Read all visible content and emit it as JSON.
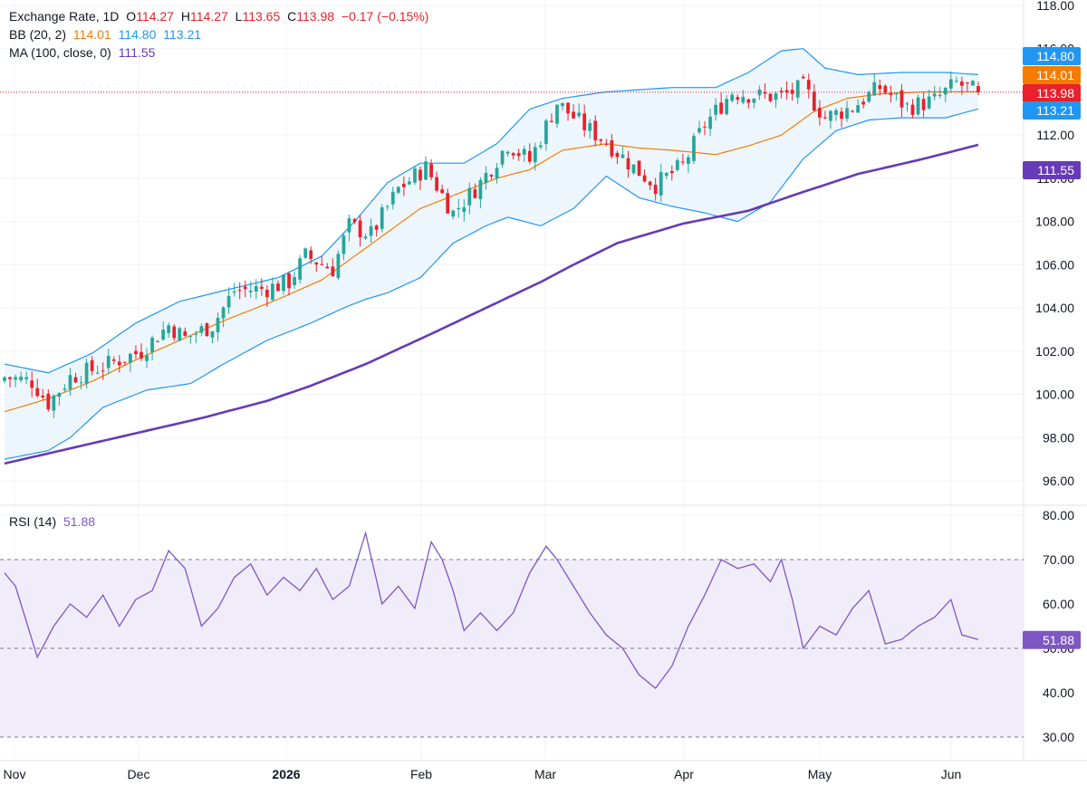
{
  "legend": {
    "price": {
      "name": "Exchange Rate, 1D",
      "o_label": "O",
      "o": "114.27",
      "h_label": "H",
      "h": "114.27",
      "l_label": "L",
      "l": "113.65",
      "c_label": "C",
      "c": "113.98",
      "change": "−0.17 (−0.15%)"
    },
    "bb": {
      "name": "BB (20, 2)",
      "basis": "114.01",
      "upper": "114.80",
      "lower": "113.21"
    },
    "ma": {
      "name": "MA (100, close, 0)",
      "value": "111.55"
    },
    "rsi": {
      "name": "RSI (14)",
      "value": "51.88"
    }
  },
  "colors": {
    "up": "#26a69a",
    "down": "#e8212b",
    "bb_basis": "#f57c00",
    "bb_band": "#2196f3",
    "bb_fill": "#eef6fd",
    "ma": "#673ab7",
    "rsi": "#7e57c2",
    "rsi_zone": "#f1ecfa",
    "grid": "#f0f3fa",
    "axis_text": "#131722"
  },
  "chart_data": [
    {
      "type": "candlestick",
      "title": "Exchange Rate, 1D",
      "x_labels": [
        "Nov",
        "Dec",
        "2026",
        "Feb",
        "Mar",
        "Apr",
        "May",
        "Jun"
      ],
      "ylim": [
        95,
        118
      ],
      "y_ticks": [
        "96.00",
        "98.00",
        "100.00",
        "102.00",
        "104.00",
        "106.00",
        "108.00",
        "110.00",
        "112.00",
        "114.00",
        "116.00",
        "118.00"
      ],
      "last_close": 113.98,
      "price_tags": [
        {
          "label": "114.80",
          "value": 114.8,
          "color": "#2196f3"
        },
        {
          "label": "114.01",
          "value": 114.01,
          "color": "#f57c00"
        },
        {
          "label": "113.98",
          "value": 113.98,
          "color": "#e8212b"
        },
        {
          "label": "113.21",
          "value": 113.21,
          "color": "#2196f3"
        },
        {
          "label": "111.55",
          "value": 111.55,
          "color": "#673ab7"
        }
      ],
      "close_anchors": [
        [
          0,
          100.8
        ],
        [
          5,
          100.6
        ],
        [
          8,
          99.6
        ],
        [
          12,
          100.8
        ],
        [
          18,
          101.3
        ],
        [
          25,
          102.0
        ],
        [
          30,
          103.2
        ],
        [
          33,
          102.6
        ],
        [
          38,
          103.2
        ],
        [
          42,
          104.8
        ],
        [
          48,
          104.9
        ],
        [
          52,
          105.2
        ],
        [
          55,
          106.4
        ],
        [
          60,
          105.8
        ],
        [
          63,
          107.8
        ],
        [
          67,
          107.4
        ],
        [
          72,
          109.5
        ],
        [
          77,
          110.5
        ],
        [
          82,
          108.4
        ],
        [
          87,
          109.8
        ],
        [
          92,
          111.6
        ],
        [
          96,
          110.8
        ],
        [
          101,
          113.5
        ],
        [
          106,
          112.4
        ],
        [
          110,
          111.7
        ],
        [
          115,
          110.5
        ],
        [
          119,
          109.7
        ],
        [
          124,
          110.6
        ],
        [
          128,
          112.5
        ],
        [
          133,
          114.0
        ],
        [
          138,
          113.8
        ],
        [
          142,
          113.8
        ],
        [
          146,
          114.2
        ],
        [
          150,
          112.8
        ],
        [
          155,
          113.3
        ],
        [
          160,
          114.2
        ],
        [
          165,
          113.3
        ],
        [
          170,
          113.6
        ],
        [
          174,
          114.4
        ],
        [
          178,
          113.98
        ]
      ],
      "bb_upper": [
        [
          0,
          101.4
        ],
        [
          8,
          101.0
        ],
        [
          16,
          101.9
        ],
        [
          24,
          103.3
        ],
        [
          32,
          104.3
        ],
        [
          40,
          104.8
        ],
        [
          50,
          105.4
        ],
        [
          58,
          106.4
        ],
        [
          64,
          108.0
        ],
        [
          70,
          109.8
        ],
        [
          76,
          110.7
        ],
        [
          84,
          110.7
        ],
        [
          90,
          111.6
        ],
        [
          96,
          113.2
        ],
        [
          102,
          113.7
        ],
        [
          110,
          114.0
        ],
        [
          116,
          114.1
        ],
        [
          122,
          114.2
        ],
        [
          130,
          114.2
        ],
        [
          136,
          114.9
        ],
        [
          142,
          115.9
        ],
        [
          146,
          116.0
        ],
        [
          150,
          115.1
        ],
        [
          156,
          114.8
        ],
        [
          164,
          114.9
        ],
        [
          172,
          114.9
        ],
        [
          178,
          114.8
        ]
      ],
      "bb_basis": [
        [
          0,
          99.2
        ],
        [
          8,
          99.8
        ],
        [
          16,
          100.6
        ],
        [
          24,
          101.6
        ],
        [
          32,
          102.5
        ],
        [
          40,
          103.4
        ],
        [
          50,
          104.4
        ],
        [
          58,
          105.3
        ],
        [
          64,
          106.4
        ],
        [
          70,
          107.5
        ],
        [
          76,
          108.6
        ],
        [
          84,
          109.4
        ],
        [
          90,
          110.0
        ],
        [
          96,
          110.4
        ],
        [
          102,
          111.3
        ],
        [
          110,
          111.6
        ],
        [
          116,
          111.4
        ],
        [
          122,
          111.3
        ],
        [
          130,
          111.1
        ],
        [
          136,
          111.5
        ],
        [
          142,
          112.0
        ],
        [
          148,
          113.1
        ],
        [
          154,
          113.7
        ],
        [
          160,
          113.9
        ],
        [
          168,
          114.0
        ],
        [
          178,
          114.01
        ]
      ],
      "bb_lower": [
        [
          0,
          97.0
        ],
        [
          8,
          97.4
        ],
        [
          12,
          98.0
        ],
        [
          18,
          99.4
        ],
        [
          26,
          100.2
        ],
        [
          34,
          100.5
        ],
        [
          40,
          101.4
        ],
        [
          48,
          102.5
        ],
        [
          56,
          103.3
        ],
        [
          62,
          104.0
        ],
        [
          66,
          104.4
        ],
        [
          70,
          104.7
        ],
        [
          76,
          105.4
        ],
        [
          82,
          107.0
        ],
        [
          88,
          107.8
        ],
        [
          92,
          108.2
        ],
        [
          98,
          107.8
        ],
        [
          104,
          108.6
        ],
        [
          110,
          110.1
        ],
        [
          116,
          109.1
        ],
        [
          122,
          108.7
        ],
        [
          128,
          108.4
        ],
        [
          134,
          108.0
        ],
        [
          140,
          108.9
        ],
        [
          146,
          110.9
        ],
        [
          152,
          112.2
        ],
        [
          158,
          112.7
        ],
        [
          164,
          112.8
        ],
        [
          172,
          112.8
        ],
        [
          178,
          113.21
        ]
      ],
      "ma": [
        [
          0,
          96.8
        ],
        [
          12,
          97.5
        ],
        [
          24,
          98.2
        ],
        [
          36,
          98.9
        ],
        [
          48,
          99.7
        ],
        [
          56,
          100.4
        ],
        [
          66,
          101.4
        ],
        [
          78,
          102.8
        ],
        [
          88,
          104.0
        ],
        [
          98,
          105.2
        ],
        [
          104,
          106.0
        ],
        [
          112,
          107.0
        ],
        [
          124,
          107.9
        ],
        [
          136,
          108.5
        ],
        [
          144,
          109.2
        ],
        [
          156,
          110.2
        ],
        [
          168,
          110.9
        ],
        [
          178,
          111.55
        ]
      ]
    },
    {
      "type": "line",
      "title": "RSI (14)",
      "ylim": [
        28,
        82
      ],
      "y_ticks": [
        "30.00",
        "40.00",
        "50.00",
        "60.00",
        "70.00",
        "80.00"
      ],
      "levels": [
        30,
        50,
        70
      ],
      "last_value": 51.88,
      "values": [
        [
          0,
          67
        ],
        [
          2,
          64
        ],
        [
          4,
          56
        ],
        [
          6,
          48
        ],
        [
          9,
          55
        ],
        [
          12,
          60
        ],
        [
          15,
          57
        ],
        [
          18,
          62
        ],
        [
          21,
          55
        ],
        [
          24,
          61
        ],
        [
          27,
          63
        ],
        [
          30,
          72
        ],
        [
          33,
          68
        ],
        [
          36,
          55
        ],
        [
          39,
          59
        ],
        [
          42,
          66
        ],
        [
          45,
          69
        ],
        [
          48,
          62
        ],
        [
          51,
          66
        ],
        [
          54,
          63
        ],
        [
          57,
          68
        ],
        [
          60,
          61
        ],
        [
          63,
          64
        ],
        [
          66,
          76
        ],
        [
          69,
          60
        ],
        [
          72,
          64
        ],
        [
          75,
          59
        ],
        [
          78,
          74
        ],
        [
          80,
          70
        ],
        [
          82,
          63
        ],
        [
          84,
          54
        ],
        [
          87,
          58
        ],
        [
          90,
          54
        ],
        [
          93,
          58
        ],
        [
          96,
          67
        ],
        [
          99,
          73
        ],
        [
          101,
          70
        ],
        [
          104,
          64
        ],
        [
          107,
          58
        ],
        [
          110,
          53
        ],
        [
          113,
          50
        ],
        [
          116,
          44
        ],
        [
          119,
          41
        ],
        [
          122,
          46
        ],
        [
          125,
          55
        ],
        [
          128,
          62
        ],
        [
          131,
          70
        ],
        [
          134,
          68
        ],
        [
          137,
          69
        ],
        [
          140,
          65
        ],
        [
          142,
          70
        ],
        [
          144,
          61
        ],
        [
          146,
          50
        ],
        [
          149,
          55
        ],
        [
          152,
          53
        ],
        [
          155,
          59
        ],
        [
          158,
          63
        ],
        [
          161,
          51
        ],
        [
          164,
          52
        ],
        [
          167,
          55
        ],
        [
          170,
          57
        ],
        [
          173,
          61
        ],
        [
          175,
          53
        ],
        [
          178,
          52
        ]
      ]
    }
  ]
}
